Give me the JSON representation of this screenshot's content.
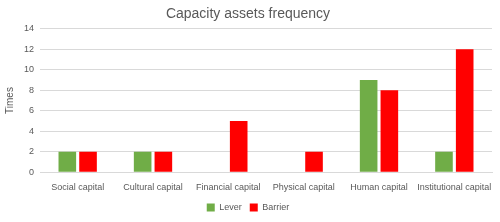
{
  "chart_data": {
    "type": "bar",
    "title": "Capacity assets frequency",
    "y_label": "Times",
    "categories": [
      "Social capital",
      "Cultural capital",
      "Financial capital",
      "Physical capital",
      "Human capital",
      "Institutional capital"
    ],
    "series": [
      {
        "name": "Lever",
        "color": "#70ad47",
        "values": [
          2,
          2,
          0,
          0,
          9,
          2
        ]
      },
      {
        "name": "Barrier",
        "color": "#ff0000",
        "values": [
          2,
          2,
          5,
          2,
          8,
          12
        ]
      }
    ],
    "ylim": [
      0,
      14
    ],
    "yticks": [
      0,
      2,
      4,
      6,
      8,
      10,
      12,
      14
    ],
    "grid": true,
    "legend": "bottom"
  }
}
